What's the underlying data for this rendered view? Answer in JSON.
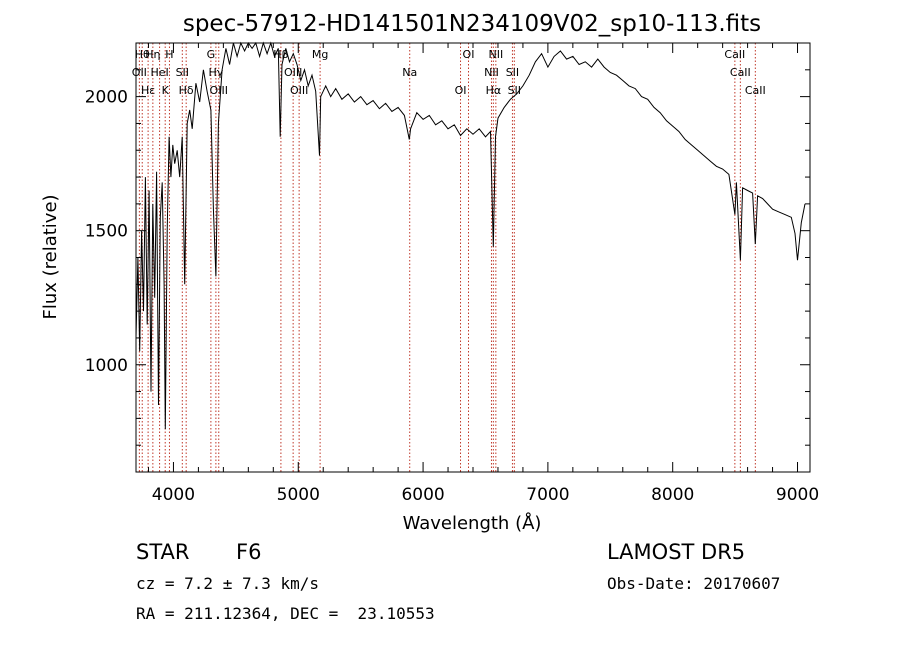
{
  "chart_data": {
    "type": "line",
    "title": "spec-57912-HD141501N234109V02_sp10-113.fits",
    "xlabel": "Wavelength (Å)",
    "ylabel": "Flux (relative)",
    "xlim": [
      3700,
      9100
    ],
    "ylim": [
      600,
      2200
    ],
    "x_ticks": [
      4000,
      5000,
      6000,
      7000,
      8000,
      9000
    ],
    "y_ticks": [
      1000,
      1500,
      2000
    ],
    "grid": false,
    "series": [
      {
        "values": [
          [
            3700,
            1100
          ],
          [
            3715,
            1400
          ],
          [
            3730,
            1050
          ],
          [
            3745,
            1500
          ],
          [
            3760,
            1200
          ],
          [
            3775,
            1700
          ],
          [
            3790,
            1150
          ],
          [
            3805,
            1650
          ],
          [
            3820,
            900
          ],
          [
            3835,
            1600
          ],
          [
            3850,
            1250
          ],
          [
            3865,
            1720
          ],
          [
            3880,
            850
          ],
          [
            3895,
            1550
          ],
          [
            3910,
            1680
          ],
          [
            3925,
            1300
          ],
          [
            3935,
            760
          ],
          [
            3950,
            1500
          ],
          [
            3965,
            1850
          ],
          [
            3980,
            1700
          ],
          [
            3995,
            1820
          ],
          [
            4010,
            1750
          ],
          [
            4030,
            1800
          ],
          [
            4050,
            1700
          ],
          [
            4070,
            1850
          ],
          [
            4090,
            1300
          ],
          [
            4110,
            1900
          ],
          [
            4130,
            1950
          ],
          [
            4150,
            1880
          ],
          [
            4180,
            2050
          ],
          [
            4210,
            1980
          ],
          [
            4240,
            2100
          ],
          [
            4270,
            2020
          ],
          [
            4300,
            1950
          ],
          [
            4320,
            1580
          ],
          [
            4340,
            1330
          ],
          [
            4360,
            1900
          ],
          [
            4390,
            2100
          ],
          [
            4420,
            2180
          ],
          [
            4450,
            2120
          ],
          [
            4480,
            2200
          ],
          [
            4510,
            2150
          ],
          [
            4540,
            2220
          ],
          [
            4570,
            2170
          ],
          [
            4600,
            2230
          ],
          [
            4630,
            2180
          ],
          [
            4660,
            2220
          ],
          [
            4690,
            2150
          ],
          [
            4720,
            2200
          ],
          [
            4750,
            2160
          ],
          [
            4780,
            2210
          ],
          [
            4810,
            2150
          ],
          [
            4840,
            2180
          ],
          [
            4855,
            1850
          ],
          [
            4870,
            2120
          ],
          [
            4900,
            2180
          ],
          [
            4930,
            2130
          ],
          [
            4960,
            2160
          ],
          [
            4990,
            2120
          ],
          [
            5020,
            2060
          ],
          [
            5050,
            2100
          ],
          [
            5080,
            2040
          ],
          [
            5110,
            2080
          ],
          [
            5140,
            2020
          ],
          [
            5170,
            1780
          ],
          [
            5180,
            2000
          ],
          [
            5220,
            2040
          ],
          [
            5260,
            2000
          ],
          [
            5300,
            2030
          ],
          [
            5350,
            1990
          ],
          [
            5400,
            2010
          ],
          [
            5450,
            1980
          ],
          [
            5500,
            2000
          ],
          [
            5550,
            1970
          ],
          [
            5600,
            1985
          ],
          [
            5650,
            1955
          ],
          [
            5700,
            1975
          ],
          [
            5750,
            1945
          ],
          [
            5800,
            1960
          ],
          [
            5850,
            1930
          ],
          [
            5890,
            1840
          ],
          [
            5900,
            1880
          ],
          [
            5950,
            1940
          ],
          [
            6000,
            1915
          ],
          [
            6050,
            1930
          ],
          [
            6100,
            1895
          ],
          [
            6150,
            1910
          ],
          [
            6200,
            1880
          ],
          [
            6250,
            1895
          ],
          [
            6300,
            1855
          ],
          [
            6350,
            1880
          ],
          [
            6400,
            1860
          ],
          [
            6450,
            1880
          ],
          [
            6500,
            1850
          ],
          [
            6540,
            1870
          ],
          [
            6563,
            1440
          ],
          [
            6580,
            1850
          ],
          [
            6600,
            1920
          ],
          [
            6650,
            1960
          ],
          [
            6700,
            1990
          ],
          [
            6750,
            2010
          ],
          [
            6800,
            2040
          ],
          [
            6850,
            2080
          ],
          [
            6900,
            2130
          ],
          [
            6950,
            2160
          ],
          [
            7000,
            2110
          ],
          [
            7050,
            2150
          ],
          [
            7100,
            2170
          ],
          [
            7150,
            2140
          ],
          [
            7200,
            2150
          ],
          [
            7250,
            2120
          ],
          [
            7300,
            2130
          ],
          [
            7350,
            2110
          ],
          [
            7400,
            2140
          ],
          [
            7450,
            2110
          ],
          [
            7500,
            2090
          ],
          [
            7550,
            2080
          ],
          [
            7600,
            2060
          ],
          [
            7650,
            2040
          ],
          [
            7700,
            2030
          ],
          [
            7750,
            2000
          ],
          [
            7800,
            1990
          ],
          [
            7850,
            1960
          ],
          [
            7900,
            1940
          ],
          [
            7950,
            1910
          ],
          [
            8000,
            1890
          ],
          [
            8050,
            1870
          ],
          [
            8100,
            1840
          ],
          [
            8150,
            1820
          ],
          [
            8200,
            1800
          ],
          [
            8250,
            1780
          ],
          [
            8300,
            1760
          ],
          [
            8350,
            1740
          ],
          [
            8400,
            1730
          ],
          [
            8450,
            1710
          ],
          [
            8498,
            1560
          ],
          [
            8510,
            1680
          ],
          [
            8542,
            1390
          ],
          [
            8560,
            1660
          ],
          [
            8600,
            1650
          ],
          [
            8640,
            1640
          ],
          [
            8662,
            1450
          ],
          [
            8680,
            1630
          ],
          [
            8720,
            1620
          ],
          [
            8760,
            1600
          ],
          [
            8800,
            1580
          ],
          [
            8850,
            1570
          ],
          [
            8900,
            1560
          ],
          [
            8950,
            1550
          ],
          [
            8980,
            1490
          ],
          [
            9000,
            1390
          ],
          [
            9030,
            1530
          ],
          [
            9060,
            1600
          ]
        ]
      }
    ],
    "lines": [
      {
        "wl": 3750,
        "label": "Hθ"
      },
      {
        "wl": 3727,
        "label": "OII"
      },
      {
        "wl": 3797,
        "label": "Hε"
      },
      {
        "wl": 3835,
        "label": "Hη"
      },
      {
        "wl": 3889,
        "label": "HeI"
      },
      {
        "wl": 3934,
        "label": "K"
      },
      {
        "wl": 3968,
        "label": "H"
      },
      {
        "wl": 4071,
        "label": "SII"
      },
      {
        "wl": 4102,
        "label": "Hδ"
      },
      {
        "wl": 4300,
        "label": "G"
      },
      {
        "wl": 4340,
        "label": "Hγ"
      },
      {
        "wl": 4363,
        "label": "OIII"
      },
      {
        "wl": 4861,
        "label": "Hβ"
      },
      {
        "wl": 4959,
        "label": "OIII"
      },
      {
        "wl": 5007,
        "label": "OIII"
      },
      {
        "wl": 5175,
        "label": "Mg"
      },
      {
        "wl": 5893,
        "label": "Na"
      },
      {
        "wl": 6300,
        "label": "OI"
      },
      {
        "wl": 6364,
        "label": "OI"
      },
      {
        "wl": 6548,
        "label": "NII"
      },
      {
        "wl": 6563,
        "label": "Hα"
      },
      {
        "wl": 6583,
        "label": "NII"
      },
      {
        "wl": 6716,
        "label": "SII"
      },
      {
        "wl": 6731,
        "label": "SII"
      },
      {
        "wl": 8498,
        "label": "CaII"
      },
      {
        "wl": 8542,
        "label": "CaII"
      },
      {
        "wl": 8662,
        "label": "CaII"
      }
    ]
  },
  "info": {
    "class": "STAR",
    "subclass": "F6",
    "cz": "cz = 7.2 ± 7.3 km/s",
    "radec": "RA = 211.12364, DEC =  23.10553",
    "survey": "LAMOST DR5",
    "obsdate": "Obs-Date: 20170607"
  }
}
